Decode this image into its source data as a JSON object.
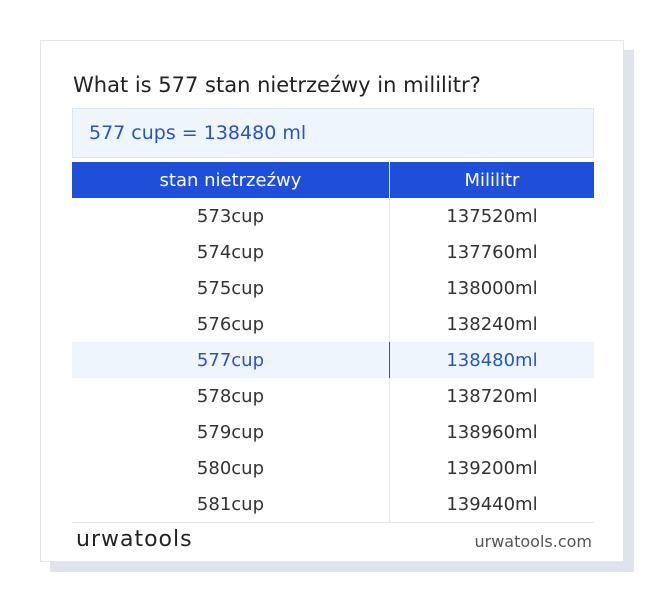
{
  "title": "What is 577 stan nietrzeźwy in mililitr?",
  "result": "577 cups = 138480 ml",
  "table": {
    "headers": [
      "stan nietrzeźwy",
      "Mililitr"
    ],
    "rows": [
      [
        "573cup",
        "137520ml"
      ],
      [
        "574cup",
        "137760ml"
      ],
      [
        "575cup",
        "138000ml"
      ],
      [
        "576cup",
        "138240ml"
      ],
      [
        "577cup",
        "138480ml"
      ],
      [
        "578cup",
        "138720ml"
      ],
      [
        "579cup",
        "138960ml"
      ],
      [
        "580cup",
        "139200ml"
      ],
      [
        "581cup",
        "139440ml"
      ]
    ]
  },
  "footer": {
    "brand": "urwatools",
    "site": "urwatools.com"
  }
}
